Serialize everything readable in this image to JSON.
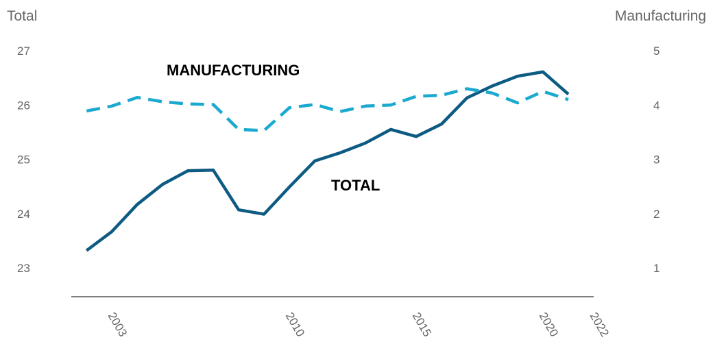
{
  "chart_data": {
    "type": "line",
    "y_left_title": "Total",
    "y_right_title": "Manufacturing",
    "y_left_range": [
      23,
      27
    ],
    "y_right_range": [
      1,
      5
    ],
    "y_left_ticks": [
      "27",
      "26",
      "25",
      "24",
      "23"
    ],
    "y_right_ticks": [
      "5",
      "4",
      "3",
      "2",
      "1"
    ],
    "x_range": [
      2001.4,
      2022
    ],
    "x_ticks": [
      "2003",
      "2010",
      "2015",
      "2020",
      "2022"
    ],
    "x_tick_values": [
      2003,
      2010,
      2015,
      2020,
      2022
    ],
    "grid": false,
    "colors": {
      "total": "#0d5a82",
      "manufacturing": "#1ba9cf",
      "text": "#666666",
      "axis": "#333333"
    },
    "series": [
      {
        "name": "TOTAL",
        "axis": "left",
        "style": "solid",
        "x": [
          2002,
          2003,
          2004,
          2005,
          2006,
          2007,
          2008,
          2009,
          2010,
          2011,
          2012,
          2013,
          2014,
          2015,
          2016,
          2017,
          2018,
          2019,
          2020,
          2021
        ],
        "values": [
          23.32,
          23.67,
          24.17,
          24.54,
          24.79,
          24.8,
          24.07,
          23.99,
          24.49,
          24.97,
          25.12,
          25.3,
          25.55,
          25.42,
          25.65,
          26.13,
          26.35,
          26.53,
          26.61,
          26.2
        ]
      },
      {
        "name": "MANUFACTURING",
        "axis": "right",
        "style": "dashed",
        "x": [
          2002,
          2003,
          2004,
          2005,
          2006,
          2007,
          2008,
          2009,
          2010,
          2011,
          2012,
          2013,
          2014,
          2015,
          2016,
          2017,
          2018,
          2019,
          2020,
          2021
        ],
        "values": [
          3.89,
          3.98,
          4.14,
          4.06,
          4.02,
          4.01,
          3.55,
          3.53,
          3.95,
          4.01,
          3.88,
          3.98,
          4.0,
          4.16,
          4.18,
          4.3,
          4.22,
          4.04,
          4.25,
          4.1
        ]
      }
    ]
  }
}
